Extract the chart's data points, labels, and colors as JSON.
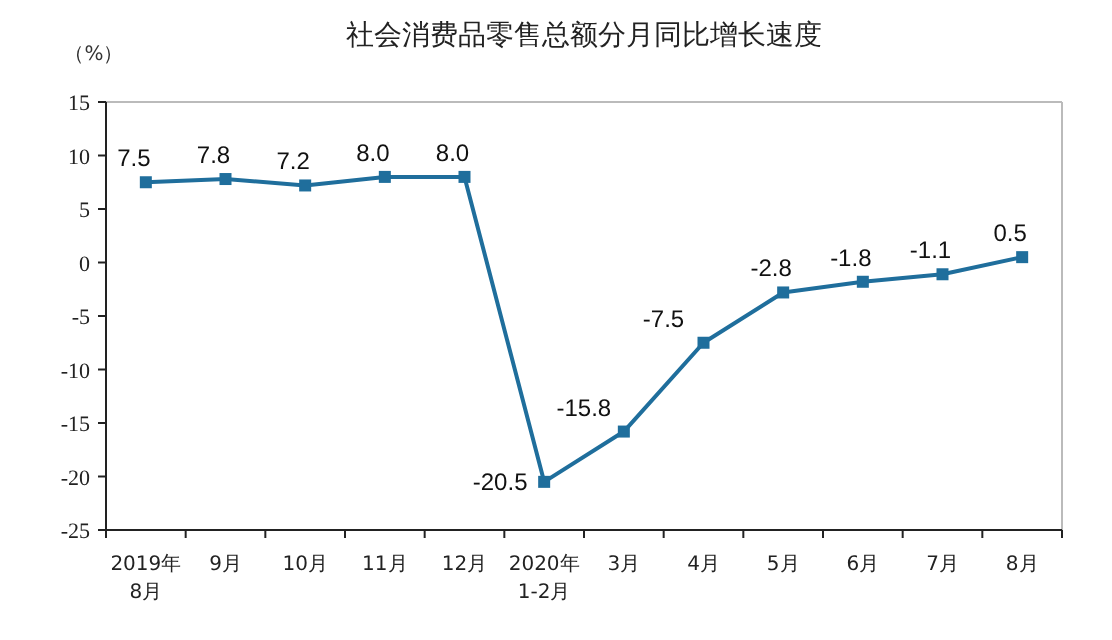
{
  "chart_data": {
    "type": "line",
    "title": "社会消费品零售总额分月同比增长速度",
    "ylabel": "（%）",
    "categories": [
      "2019年\n8月",
      "9月",
      "10月",
      "11月",
      "12月",
      "2020年\n1-2月",
      "3月",
      "4月",
      "5月",
      "6月",
      "7月",
      "8月"
    ],
    "series": [
      {
        "color": "#1f6e9c",
        "values": [
          7.5,
          7.8,
          7.2,
          8.0,
          8.0,
          -20.5,
          -15.8,
          -7.5,
          -2.8,
          -1.8,
          -1.1,
          0.5
        ],
        "value_labels": [
          "7.5",
          "7.8",
          "7.2",
          "8.0",
          "8.0",
          "-20.5",
          "-15.8",
          "-7.5",
          "-2.8",
          "-1.8",
          "-1.1",
          "0.5"
        ]
      }
    ],
    "ylim": [
      -25,
      15
    ],
    "yticks": [
      -25,
      -20,
      -15,
      -10,
      -5,
      0,
      5,
      10,
      15
    ],
    "marker": "square",
    "grid": false
  }
}
